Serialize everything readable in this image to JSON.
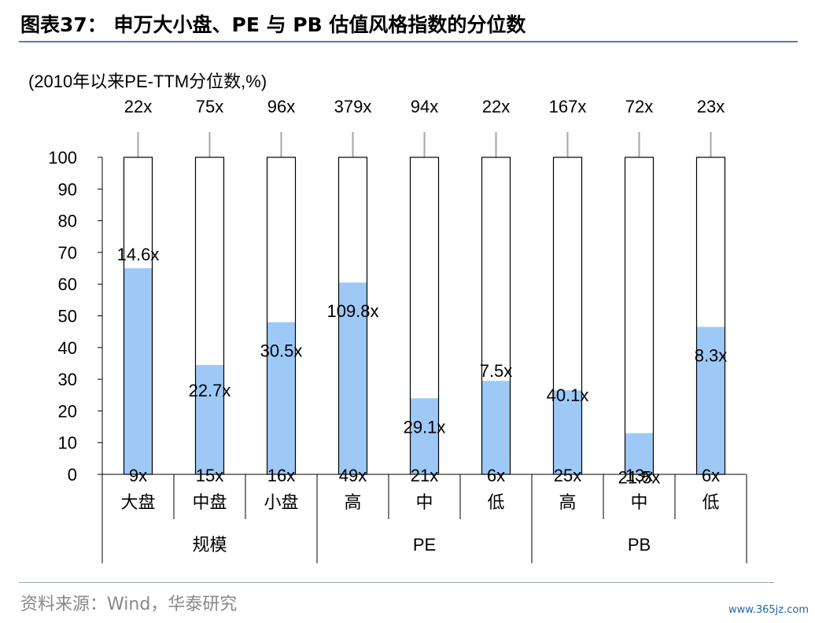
{
  "title": "图表37： 申万大小盘、PE 与 PB 估值风格指数的分位数",
  "source": "资料来源：Wind，华泰研究",
  "watermark": "www.365jz.com",
  "colors": {
    "bar_fill": "#9ec9f7",
    "title_rule": "#5b7fa6",
    "axis": "#000000"
  },
  "chart_data": {
    "type": "bar",
    "unit_label": "(2010年以来PE-TTM分位数,%)",
    "ylim": [
      0,
      100
    ],
    "yticks": [
      0,
      10,
      20,
      30,
      40,
      50,
      60,
      70,
      80,
      90,
      100
    ],
    "categories": [
      "大盘",
      "中盘",
      "小盘",
      "高",
      "中",
      "低",
      "高",
      "中",
      "低"
    ],
    "groups": [
      {
        "label": "规模",
        "span": 3
      },
      {
        "label": "PE",
        "span": 3
      },
      {
        "label": "PB",
        "span": 3
      }
    ],
    "values": [
      65,
      34.5,
      48,
      60.5,
      24,
      29.5,
      26.5,
      13,
      46.5
    ],
    "current_labels": [
      "14.6x",
      "22.7x",
      "30.5x",
      "109.8x",
      "29.1x",
      "7.5x",
      "40.1x",
      "21.5x",
      "8.3x"
    ],
    "max_labels": [
      "22x",
      "75x",
      "96x",
      "379x",
      "94x",
      "22x",
      "167x",
      "72x",
      "23x"
    ],
    "min_labels": [
      "9x",
      "15x",
      "16x",
      "49x",
      "21x",
      "6x",
      "25x",
      "13x",
      "6x"
    ],
    "grid": false,
    "legend": "none"
  }
}
